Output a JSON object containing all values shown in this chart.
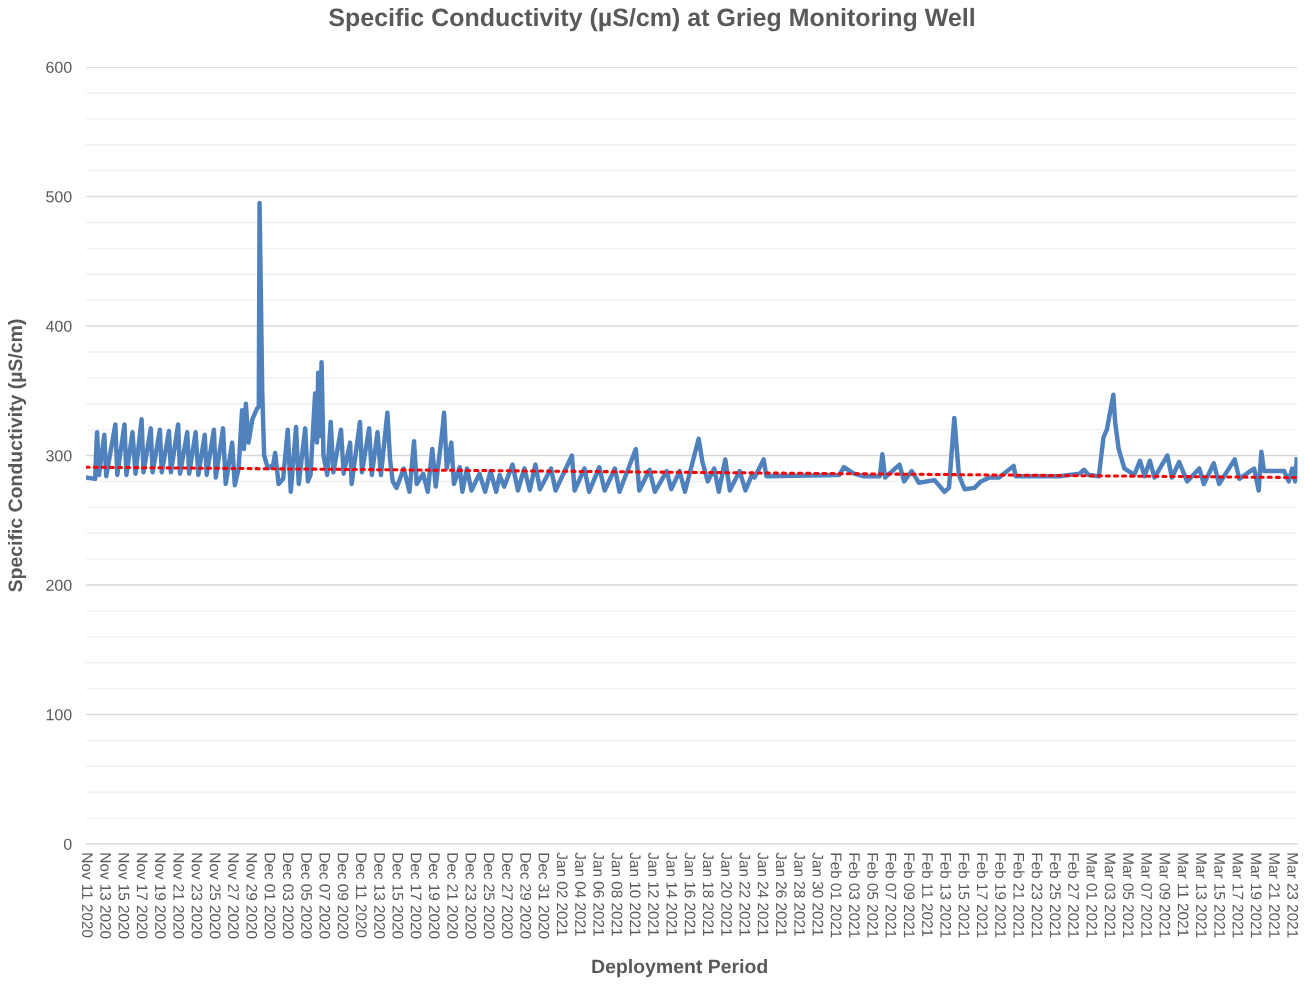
{
  "chart_data": {
    "type": "line",
    "title": "Specific Conductivity (µS/cm) at Grieg Monitoring Well",
    "xlabel": "Deployment Period",
    "ylabel": "Specific Conductivity (µS/cm)",
    "xlim": [
      "2020-11-11",
      "2021-03-23T16:00"
    ],
    "ylim": [
      0,
      600
    ],
    "grid": "y",
    "yticks": [
      0,
      {
        "value": 20,
        "label": null
      },
      {
        "value": 40,
        "label": null
      },
      {
        "value": 60,
        "label": null
      },
      {
        "value": 80,
        "label": null
      },
      100,
      {
        "value": 120,
        "label": null
      },
      {
        "value": 140,
        "label": null
      },
      {
        "value": 160,
        "label": null
      },
      {
        "value": 180,
        "label": null
      },
      200,
      {
        "value": 220,
        "label": null
      },
      {
        "value": 240,
        "label": null
      },
      {
        "value": 260,
        "label": null
      },
      {
        "value": 280,
        "label": null
      },
      300,
      {
        "value": 320,
        "label": null
      },
      {
        "value": 340,
        "label": null
      },
      {
        "value": 360,
        "label": null
      },
      {
        "value": 380,
        "label": null
      },
      400,
      {
        "value": 420,
        "label": null
      },
      {
        "value": 440,
        "label": null
      },
      {
        "value": 460,
        "label": null
      },
      {
        "value": 480,
        "label": null
      },
      500,
      {
        "value": 520,
        "label": null
      },
      {
        "value": 540,
        "label": null
      },
      {
        "value": 560,
        "label": null
      },
      {
        "value": 580,
        "label": null
      },
      600
    ],
    "xticks": [
      {
        "value": "2020-11-11",
        "label": "Nov 11 2020"
      },
      {
        "value": "2020-11-13",
        "label": "Nov 13 2020"
      },
      {
        "value": "2020-11-15",
        "label": "Nov 15 2020"
      },
      {
        "value": "2020-11-17",
        "label": "Nov 17 2020"
      },
      {
        "value": "2020-11-19",
        "label": "Nov 19 2020"
      },
      {
        "value": "2020-11-21",
        "label": "Nov 21 2020"
      },
      {
        "value": "2020-11-23",
        "label": "Nov 23 2020"
      },
      {
        "value": "2020-11-25",
        "label": "Nov 25 2020"
      },
      {
        "value": "2020-11-27",
        "label": "Nov 27 2020"
      },
      {
        "value": "2020-11-29",
        "label": "Nov 29 2020"
      },
      {
        "value": "2020-12-01",
        "label": "Dec 01 2020"
      },
      {
        "value": "2020-12-03",
        "label": "Dec 03 2020"
      },
      {
        "value": "2020-12-05",
        "label": "Dec 05 2020"
      },
      {
        "value": "2020-12-07",
        "label": "Dec 07 2020"
      },
      {
        "value": "2020-12-09",
        "label": "Dec 09 2020"
      },
      {
        "value": "2020-12-11",
        "label": "Dec 11 2020"
      },
      {
        "value": "2020-12-13",
        "label": "Dec 13 2020"
      },
      {
        "value": "2020-12-15",
        "label": "Dec 15 2020"
      },
      {
        "value": "2020-12-17",
        "label": "Dec 17 2020"
      },
      {
        "value": "2020-12-19",
        "label": "Dec 19 2020"
      },
      {
        "value": "2020-12-21",
        "label": "Dec 21 2020"
      },
      {
        "value": "2020-12-23",
        "label": "Dec 23 2020"
      },
      {
        "value": "2020-12-25",
        "label": "Dec 25 2020"
      },
      {
        "value": "2020-12-27",
        "label": "Dec 27 2020"
      },
      {
        "value": "2020-12-29",
        "label": "Dec 29 2020"
      },
      {
        "value": "2020-12-31",
        "label": "Dec 31 2020"
      },
      {
        "value": "2021-01-02",
        "label": "Jan 02 2021"
      },
      {
        "value": "2021-01-04",
        "label": "Jan 04 2021"
      },
      {
        "value": "2021-01-06",
        "label": "Jan 06 2021"
      },
      {
        "value": "2021-01-08",
        "label": "Jan 08 2021"
      },
      {
        "value": "2021-01-10",
        "label": "Jan 10 2021"
      },
      {
        "value": "2021-01-12",
        "label": "Jan 12 2021"
      },
      {
        "value": "2021-01-14",
        "label": "Jan 14 2021"
      },
      {
        "value": "2021-01-16",
        "label": "Jan 16 2021"
      },
      {
        "value": "2021-01-18",
        "label": "Jan 18 2021"
      },
      {
        "value": "2021-01-20",
        "label": "Jan 20 2021"
      },
      {
        "value": "2021-01-22",
        "label": "Jan 22 2021"
      },
      {
        "value": "2021-01-24",
        "label": "Jan 24 2021"
      },
      {
        "value": "2021-01-26",
        "label": "Jan 26 2021"
      },
      {
        "value": "2021-01-28",
        "label": "Jan 28 2021"
      },
      {
        "value": "2021-01-30",
        "label": "Jan 30 2021"
      },
      {
        "value": "2021-02-01",
        "label": "Feb 01 2021"
      },
      {
        "value": "2021-02-03",
        "label": "Feb 03 2021"
      },
      {
        "value": "2021-02-05",
        "label": "Feb 05 2021"
      },
      {
        "value": "2021-02-07",
        "label": "Feb 07 2021"
      },
      {
        "value": "2021-02-09",
        "label": "Feb 09 2021"
      },
      {
        "value": "2021-02-11",
        "label": "Feb 11 2021"
      },
      {
        "value": "2021-02-13",
        "label": "Feb 13 2021"
      },
      {
        "value": "2021-02-15",
        "label": "Feb 15 2021"
      },
      {
        "value": "2021-02-17",
        "label": "Feb 17 2021"
      },
      {
        "value": "2021-02-19",
        "label": "Feb 19 2021"
      },
      {
        "value": "2021-02-21",
        "label": "Feb 21 2021"
      },
      {
        "value": "2021-02-23",
        "label": "Feb 23 2021"
      },
      {
        "value": "2021-02-25",
        "label": "Feb 25 2021"
      },
      {
        "value": "2021-02-27",
        "label": "Feb 27 2021"
      },
      {
        "value": "2021-03-01",
        "label": "Mar 01 2021"
      },
      {
        "value": "2021-03-03",
        "label": "Mar 03 2021"
      },
      {
        "value": "2021-03-05",
        "label": "Mar 05 2021"
      },
      {
        "value": "2021-03-07",
        "label": "Mar 07 2021"
      },
      {
        "value": "2021-03-09",
        "label": "Mar 09 2021"
      },
      {
        "value": "2021-03-11",
        "label": "Mar 11 2021"
      },
      {
        "value": "2021-03-13",
        "label": "Mar 13 2021"
      },
      {
        "value": "2021-03-15",
        "label": "Mar 15 2021"
      },
      {
        "value": "2021-03-17",
        "label": "Mar 17 2021"
      },
      {
        "value": "2021-03-19",
        "label": "Mar 19 2021"
      },
      {
        "value": "2021-03-21",
        "label": "Mar 21 2021"
      },
      {
        "value": "2021-03-23",
        "label": "Mar 23 2021"
      }
    ],
    "series": [
      {
        "color": "#4f81bd",
        "line_style": "solid",
        "x": [
          "2020-11-11T00:00",
          "2020-11-12T00:00",
          "2020-11-12T02:00",
          "2020-11-12T05:00",
          "2020-11-12T10:00",
          "2020-11-13T00:00",
          "2020-11-13T05:00",
          "2020-11-14T05:00",
          "2020-11-14T10:00",
          "2020-11-15T05:00",
          "2020-11-15T10:00",
          "2020-11-16T02:00",
          "2020-11-16T10:00",
          "2020-11-17T02:00",
          "2020-11-17T07:00",
          "2020-11-18T02:00",
          "2020-11-18T07:00",
          "2020-11-19T02:00",
          "2020-11-19T07:00",
          "2020-11-20T02:00",
          "2020-11-20T07:00",
          "2020-11-21T02:00",
          "2020-11-21T07:00",
          "2020-11-22T02:00",
          "2020-11-22T07:00",
          "2020-11-23T00:00",
          "2020-11-23T07:00",
          "2020-11-24T00:00",
          "2020-11-24T05:00",
          "2020-11-25T00:00",
          "2020-11-25T05:00",
          "2020-11-26T00:00",
          "2020-11-26T07:00",
          "2020-11-27T00:00",
          "2020-11-27T07:00",
          "2020-11-27T17:00",
          "2020-11-28T02:00",
          "2020-11-28T07:00",
          "2020-11-28T12:00",
          "2020-11-28T19:00",
          "2020-11-29T05:00",
          "2020-11-29T17:00",
          "2020-11-29T22:00",
          "2020-11-30T00:00",
          "2020-11-30T07:00",
          "2020-11-30T12:00",
          "2020-11-30T22:00",
          "2020-12-01T12:00",
          "2020-12-01T17:00",
          "2020-12-02T02:00",
          "2020-12-02T14:00",
          "2020-12-03T02:00",
          "2020-12-03T10:00",
          "2020-12-04T00:00",
          "2020-12-04T07:00",
          "2020-12-05T00:00",
          "2020-12-05T07:00",
          "2020-12-05T14:00",
          "2020-12-06T02:00",
          "2020-12-06T07:00",
          "2020-12-06T10:00",
          "2020-12-06T14:00",
          "2020-12-06T19:00",
          "2020-12-07T00:00",
          "2020-12-07T10:00",
          "2020-12-07T19:00",
          "2020-12-08T02:00",
          "2020-12-08T22:00",
          "2020-12-09T05:00",
          "2020-12-09T22:00",
          "2020-12-10T02:00",
          "2020-12-11T00:00",
          "2020-12-11T05:00",
          "2020-12-12T00:00",
          "2020-12-12T07:00",
          "2020-12-12T22:00",
          "2020-12-13T07:00",
          "2020-12-14T00:00",
          "2020-12-14T07:00",
          "2020-12-14T14:00",
          "2020-12-15T00:00",
          "2020-12-15T19:00",
          "2020-12-16T10:00",
          "2020-12-16T22:00",
          "2020-12-17T05:00",
          "2020-12-17T22:00",
          "2020-12-18T10:00",
          "2020-12-18T22:00",
          "2020-12-19T07:00",
          "2020-12-20T00:00",
          "2020-12-20T05:00",
          "2020-12-20T12:00",
          "2020-12-21T00:00",
          "2020-12-21T07:00",
          "2020-12-21T22:00",
          "2020-12-22T05:00",
          "2020-12-22T17:00",
          "2020-12-23T05:00",
          "2020-12-24T02:00",
          "2020-12-24T17:00",
          "2020-12-25T07:00",
          "2020-12-25T22:00",
          "2020-12-26T07:00",
          "2020-12-26T19:00",
          "2020-12-27T17:00",
          "2020-12-28T07:00",
          "2020-12-29T00:00",
          "2020-12-29T14:00",
          "2020-12-30T05:00",
          "2020-12-30T17:00",
          "2020-12-31T22:00",
          "2021-01-01T10:00",
          "2021-01-03T05:00",
          "2021-01-03T12:00",
          "2021-01-04T14:00",
          "2021-01-05T02:00",
          "2021-01-06T05:00",
          "2021-01-06T19:00",
          "2021-01-07T22:00",
          "2021-01-08T10:00",
          "2021-01-10T05:00",
          "2021-01-10T14:00",
          "2021-01-11T17:00",
          "2021-01-12T07:00",
          "2021-01-13T14:00",
          "2021-01-14T02:00",
          "2021-01-15T00:00",
          "2021-01-15T14:00",
          "2021-01-17T02:00",
          "2021-01-17T12:00",
          "2021-01-18T02:00",
          "2021-01-18T19:00",
          "2021-01-19T07:00",
          "2021-01-20T00:00",
          "2021-01-20T12:00",
          "2021-01-21T14:00",
          "2021-01-22T05:00",
          "2021-01-22T22:00",
          "2021-01-23T05:00",
          "2021-01-24T05:00",
          "2021-01-24T12:00",
          "2021-02-01T12:00",
          "2021-02-02T00:00",
          "2021-02-03T02:00",
          "2021-02-04T05:00",
          "2021-02-05T22:00",
          "2021-02-06T05:00",
          "2021-02-06T12:00",
          "2021-02-08T02:00",
          "2021-02-08T14:00",
          "2021-02-09T10:00",
          "2021-02-10T05:00",
          "2021-02-11T22:00",
          "2021-02-13T00:00",
          "2021-02-13T12:00",
          "2021-02-14T02:00",
          "2021-02-14T10:00",
          "2021-02-14T14:00",
          "2021-02-15T05:00",
          "2021-02-16T07:00",
          "2021-02-17T00:00",
          "2021-02-17T22:00",
          "2021-02-19T00:00",
          "2021-02-20T14:00",
          "2021-02-20T19:00",
          "2021-02-25T14:00",
          "2021-02-27T19:00",
          "2021-02-28T07:00",
          "2021-02-28T19:00",
          "2021-03-01T22:00",
          "2021-03-02T10:00",
          "2021-03-02T19:00",
          "2021-03-03T12:00",
          "2021-03-03T17:00",
          "2021-03-04T02:00",
          "2021-03-04T17:00",
          "2021-03-05T19:00",
          "2021-03-06T10:00",
          "2021-03-06T22:00",
          "2021-03-07T12:00",
          "2021-03-08T00:00",
          "2021-03-09T10:00",
          "2021-03-09T22:00",
          "2021-03-10T17:00",
          "2021-03-11T14:00",
          "2021-03-12T22:00",
          "2021-03-13T10:00",
          "2021-03-14T12:00",
          "2021-03-15T02:00",
          "2021-03-16T19:00",
          "2021-03-17T07:00",
          "2021-03-18T22:00",
          "2021-03-19T10:00",
          "2021-03-19T17:00",
          "2021-03-20T00:00",
          "2021-03-22T05:00",
          "2021-03-22T17:00",
          "2021-03-23T02:00",
          "2021-03-23T10:00",
          "2021-03-23T14:00"
        ],
        "values": [
          283,
          282,
          300,
          318,
          285,
          316,
          284,
          324,
          285,
          324,
          285,
          318,
          286,
          328,
          287,
          321,
          287,
          320,
          287,
          319,
          287,
          324,
          286,
          318,
          286,
          318,
          285,
          316,
          285,
          320,
          283,
          321,
          278,
          310,
          277,
          290,
          335,
          305,
          340,
          310,
          328,
          336,
          338,
          495,
          350,
          300,
          290,
          293,
          302,
          278,
          282,
          320,
          272,
          322,
          278,
          321,
          280,
          285,
          348,
          310,
          364,
          315,
          372,
          300,
          285,
          326,
          287,
          320,
          286,
          310,
          278,
          326,
          287,
          321,
          285,
          318,
          285,
          333,
          297,
          280,
          275,
          290,
          272,
          311,
          278,
          286,
          272,
          305,
          276,
          318,
          333,
          290,
          310,
          278,
          291,
          272,
          290,
          273,
          286,
          272,
          288,
          272,
          285,
          276,
          293,
          273,
          290,
          273,
          293,
          274,
          290,
          273,
          300,
          273,
          290,
          272,
          291,
          273,
          290,
          272,
          305,
          273,
          289,
          272,
          288,
          274,
          288,
          272,
          313,
          295,
          280,
          290,
          272,
          297,
          273,
          288,
          273,
          285,
          283,
          297,
          284,
          285,
          291,
          286,
          284,
          284,
          301,
          283,
          293,
          280,
          288,
          279,
          281,
          272,
          275,
          329,
          300,
          285,
          274,
          275,
          280,
          283,
          283,
          292,
          284,
          284,
          286,
          289,
          285,
          284,
          314,
          320,
          347,
          325,
          305,
          290,
          285,
          296,
          284,
          296,
          283,
          300,
          283,
          295,
          280,
          290,
          278,
          294,
          278,
          297,
          282,
          290,
          273,
          303,
          288,
          288,
          280,
          290,
          280,
          297
        ]
      },
      {
        "color": "#ff0000",
        "line_style": "dotted",
        "x": [
          "2020-11-11T00:00",
          "2021-03-23T14:00"
        ],
        "values": [
          291,
          283
        ]
      }
    ]
  }
}
